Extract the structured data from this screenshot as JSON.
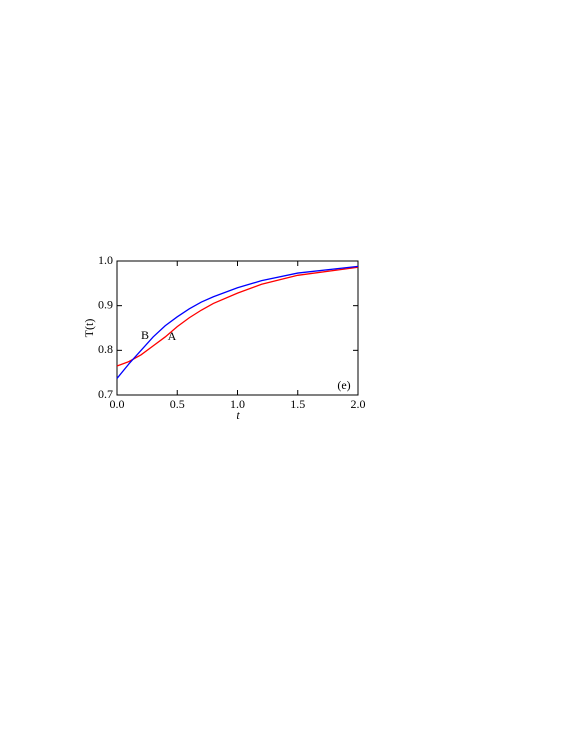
{
  "chart_data": {
    "type": "line",
    "xlabel": "t",
    "ylabel": "T(t)",
    "x": [
      0,
      0.1,
      0.2,
      0.3,
      0.4,
      0.5,
      0.6,
      0.7,
      0.8,
      1.0,
      1.2,
      1.5,
      2.0
    ],
    "series": [
      {
        "name": "A",
        "color": "#ff0000",
        "values": [
          0.765,
          0.775,
          0.79,
          0.81,
          0.83,
          0.853,
          0.873,
          0.89,
          0.905,
          0.928,
          0.948,
          0.968,
          0.986
        ]
      },
      {
        "name": "B",
        "color": "#0000ff",
        "values": [
          0.737,
          0.77,
          0.8,
          0.83,
          0.855,
          0.875,
          0.893,
          0.908,
          0.92,
          0.94,
          0.956,
          0.973,
          0.988
        ]
      }
    ],
    "xlim": [
      0,
      2
    ],
    "ylim": [
      0.7,
      1.0
    ],
    "xticks": [
      {
        "value": 0,
        "label": "0.0"
      },
      0.5,
      {
        "value": 1,
        "label": "1.0"
      },
      1.5,
      {
        "value": 2,
        "label": "2.0"
      }
    ],
    "yticks": [
      0.7,
      0.8,
      0.9,
      {
        "value": 1,
        "label": "1.0"
      }
    ],
    "panel_label": "(e)"
  }
}
